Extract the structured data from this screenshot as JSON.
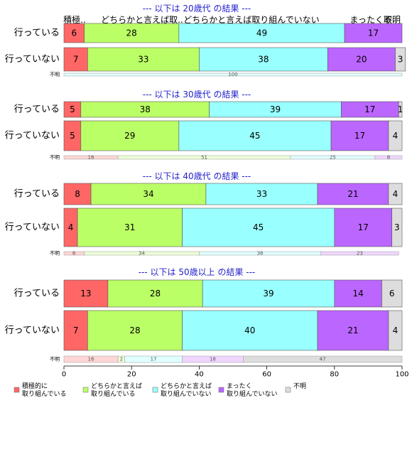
{
  "chart_data": {
    "type": "bar",
    "orientation": "horizontal",
    "stacked": true,
    "xlim": [
      0,
      100
    ],
    "x_ticks": [
      0,
      20,
      40,
      60,
      80,
      100
    ],
    "grid": false,
    "legend_position": "bottom",
    "colors": [
      "#ff6666",
      "#bbff66",
      "#99ffff",
      "#bb66ff",
      "#dddddd"
    ],
    "light_colors": [
      "#ffd6d6",
      "#eeffd6",
      "#e0ffff",
      "#f0d6ff",
      "#dddddd"
    ],
    "legend": [
      {
        "line1": "積極的に",
        "line2": "取り組んでいる"
      },
      {
        "line1": "どちらかと言えば",
        "line2": "取り組んでいる"
      },
      {
        "line1": "どちらかと言えば",
        "line2": "取り組んでいない"
      },
      {
        "line1": "まったく",
        "line2": "取り組んでいない"
      },
      {
        "line1": "不明",
        "line2": ""
      }
    ],
    "category_header": [
      "積極..",
      "どちらかと言えば取..",
      "どちらかと言えば取り組んでいない",
      "まったく取..",
      "不明"
    ],
    "groups": [
      {
        "title": "--- 以下は 20歳代 の結果 ---",
        "rows": [
          {
            "label": "行っている",
            "values": [
              6,
              28,
              49,
              17,
              0
            ]
          },
          {
            "label": "行っていない",
            "values": [
              7,
              33,
              38,
              20,
              3
            ]
          }
        ],
        "unknown": {
          "label": "不明",
          "values": [
            0,
            0,
            100,
            0,
            0
          ]
        }
      },
      {
        "title": "--- 以下は 30歳代 の結果 ---",
        "rows": [
          {
            "label": "行っている",
            "values": [
              5,
              38,
              39,
              17,
              1
            ]
          },
          {
            "label": "行っていない",
            "values": [
              5,
              29,
              45,
              17,
              4
            ]
          }
        ],
        "unknown": {
          "label": "不明",
          "values": [
            16,
            51,
            25,
            8,
            0
          ]
        }
      },
      {
        "title": "--- 以下は 40歳代 の結果 ---",
        "rows": [
          {
            "label": "行っている",
            "values": [
              8,
              34,
              33,
              21,
              4
            ]
          },
          {
            "label": "行っていない",
            "values": [
              4,
              31,
              45,
              17,
              3
            ]
          }
        ],
        "unknown": {
          "label": "不明",
          "values": [
            6,
            34,
            36,
            23,
            0
          ]
        }
      },
      {
        "title": "--- 以下は 50歳以上 の結果 ---",
        "rows": [
          {
            "label": "行っている",
            "values": [
              13,
              28,
              39,
              14,
              6
            ]
          },
          {
            "label": "行っていない",
            "values": [
              7,
              28,
              40,
              21,
              4
            ]
          }
        ],
        "unknown": {
          "label": "不明",
          "values": [
            16,
            2,
            17,
            18,
            47
          ]
        }
      }
    ]
  }
}
